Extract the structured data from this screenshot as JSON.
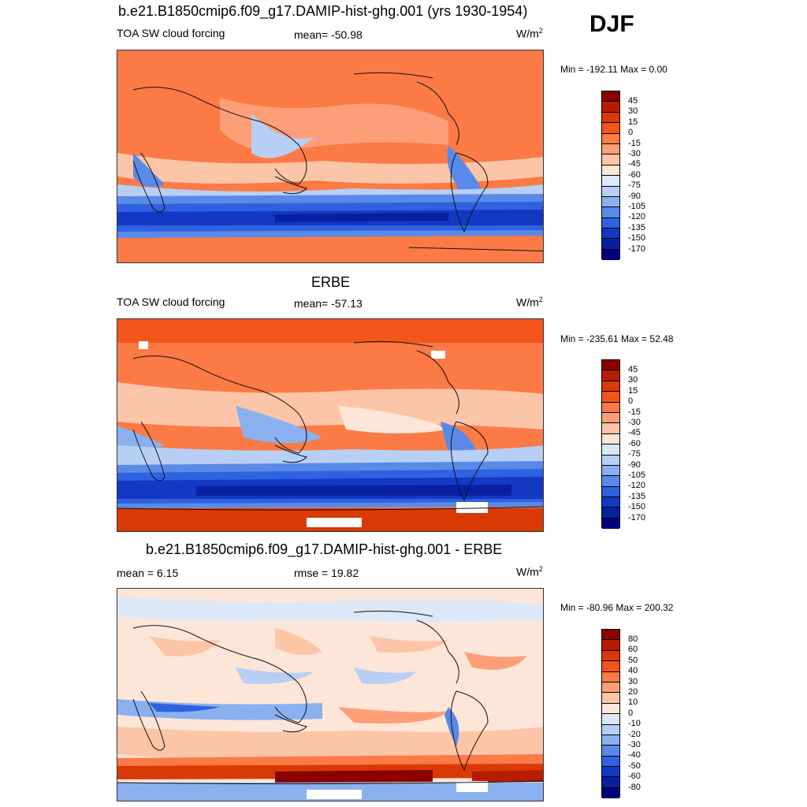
{
  "season": "DJF",
  "panels": [
    {
      "title": "b.e21.B1850cmip6.f09_g17.DAMIP-hist-ghg.001 (yrs 1930-1954)",
      "left_label": "TOA SW cloud forcing",
      "center_label": "mean= -50.98",
      "units": "W/m",
      "units_sup": "2",
      "minmax": "Min = -192.11 Max =   0.00"
    },
    {
      "title": "ERBE",
      "left_label": "TOA SW cloud forcing",
      "center_label": "mean= -57.13",
      "units": "W/m",
      "units_sup": "2",
      "minmax": "Min = -235.61 Max =  52.48"
    },
    {
      "title": "b.e21.B1850cmip6.f09_g17.DAMIP-hist-ghg.001 - ERBE",
      "left_label": "mean =   6.15",
      "center_label": "rmse =  19.82",
      "units": "W/m",
      "units_sup": "2",
      "minmax": "Min = -80.96 Max = 200.32"
    }
  ],
  "colorbar_abs": {
    "levels": [
      "45",
      "30",
      "15",
      "0",
      "-15",
      "-30",
      "-45",
      "-60",
      "-75",
      "-90",
      "-105",
      "-120",
      "-135",
      "-150",
      "-170"
    ],
    "colors": [
      "#8b0000",
      "#b81c00",
      "#d93a05",
      "#f2541a",
      "#fb7a45",
      "#fc9f78",
      "#fdc5a8",
      "#fde6d8",
      "#dce8f7",
      "#b8cff5",
      "#8ab0f0",
      "#5a8ae8",
      "#2e62e0",
      "#1238c4",
      "#0820a0",
      "#00007a"
    ]
  },
  "colorbar_diff": {
    "levels": [
      "80",
      "60",
      "50",
      "40",
      "30",
      "20",
      "10",
      "0",
      "-10",
      "-20",
      "-30",
      "-40",
      "-50",
      "-60",
      "-80"
    ],
    "colors": [
      "#8b0000",
      "#b81c00",
      "#d93a05",
      "#f2541a",
      "#fb7a45",
      "#fc9f78",
      "#fdc5a8",
      "#fde6d8",
      "#dce8f7",
      "#b8cff5",
      "#8ab0f0",
      "#5a8ae8",
      "#2e62e0",
      "#1238c4",
      "#0820a0",
      "#00007a"
    ]
  }
}
